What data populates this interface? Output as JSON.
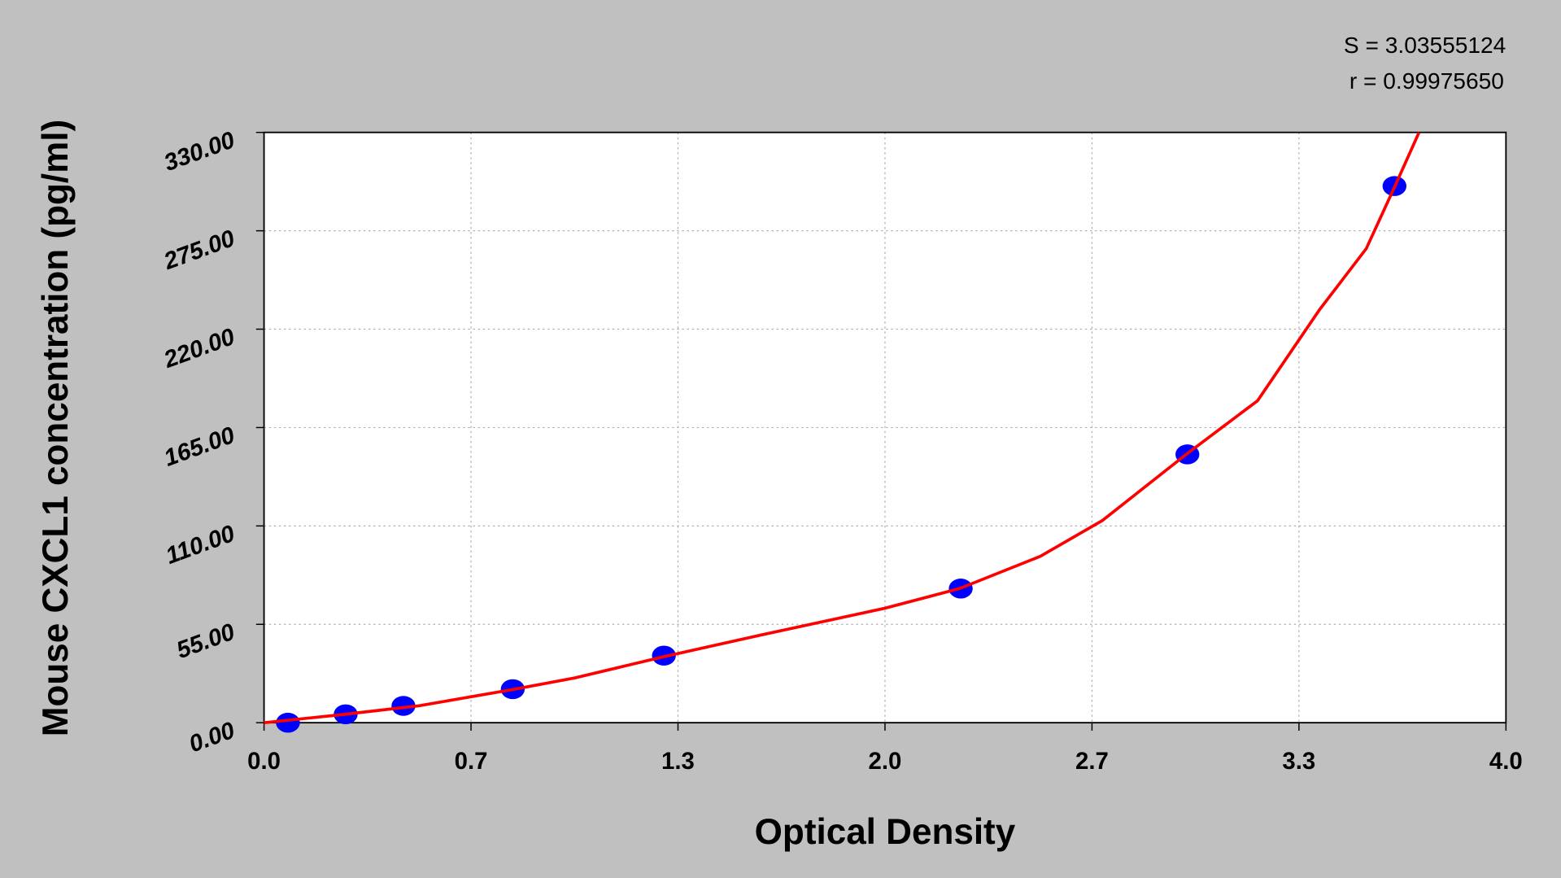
{
  "chart_data": {
    "type": "scatter",
    "annotations": [
      "S = 3.03555124",
      "r = 0.99975650"
    ],
    "x_label": "Optical Density",
    "y_label": "Mouse CXCL1 concentration (pg/ml)",
    "xlim": [
      0,
      4
    ],
    "xticks": [
      {
        "value": 0,
        "label": "0.0"
      },
      {
        "value": 0.6667,
        "label": "0.7"
      },
      {
        "value": 1.3333,
        "label": "1.3"
      },
      {
        "value": 2,
        "label": "2.0"
      },
      {
        "value": 2.6667,
        "label": "2.7"
      },
      {
        "value": 3.3333,
        "label": "3.3"
      },
      {
        "value": 4,
        "label": "4.0"
      }
    ],
    "ylim": [
      0,
      330
    ],
    "yticks": [
      {
        "value": 0,
        "label": "0.00"
      },
      {
        "value": 55,
        "label": "55.00"
      },
      {
        "value": 110,
        "label": "110.00"
      },
      {
        "value": 165,
        "label": "165.00"
      },
      {
        "value": 220,
        "label": "220.00"
      },
      {
        "value": 275,
        "label": "275.00"
      },
      {
        "value": 330,
        "label": "330.00"
      }
    ],
    "grid": true,
    "points": {
      "color": "#0000ff",
      "x": [
        0.077,
        0.263,
        0.449,
        0.801,
        1.288,
        2.244,
        2.974,
        3.641
      ],
      "y": [
        0,
        4.7,
        9.4,
        18.75,
        37.5,
        75,
        150,
        300
      ]
    },
    "fit": {
      "color": "#ff0000",
      "x": [
        0,
        0.25,
        0.5,
        0.8,
        1.0,
        1.29,
        1.6,
        2.0,
        2.24,
        2.5,
        2.7,
        2.97,
        3.2,
        3.4,
        3.55,
        3.64,
        3.72
      ],
      "y": [
        0,
        4.5,
        9.5,
        18.5,
        25,
        37,
        49,
        64,
        75,
        93,
        113,
        150,
        180,
        231,
        265,
        299,
        330
      ]
    }
  }
}
